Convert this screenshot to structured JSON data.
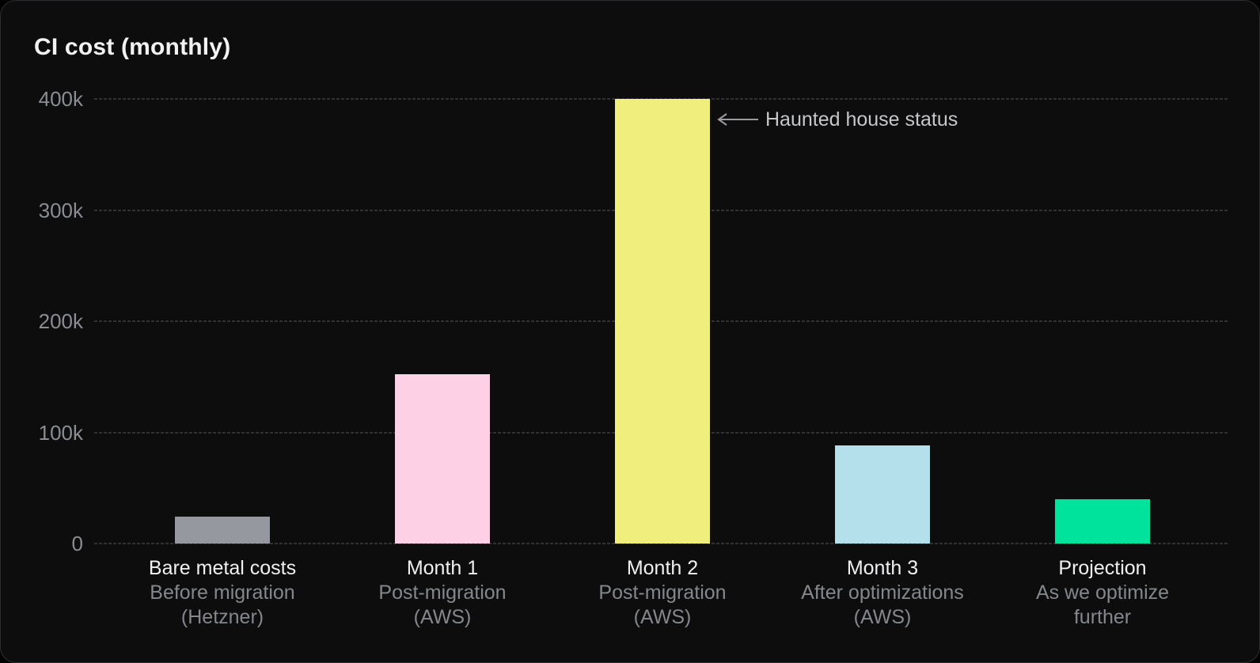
{
  "title": "CI cost (monthly)",
  "colors": {
    "background": "#0d0d0e",
    "panel_border": "#2e2e31",
    "title_text": "#f2f2f3",
    "tick_label": "#8b8d93",
    "gridline": "#313134",
    "category_label": "#f0f0f1",
    "category_sublabel": "#85878c",
    "annotation_text": "#c6c7ca",
    "annotation_arrow": "#9b9ca0",
    "bar_gray": "#95999f",
    "bar_pink": "#fdd0e5",
    "bar_yellow": "#f0ee7d",
    "bar_blue": "#b4e0eb",
    "bar_green": "#00e39c"
  },
  "chart_data": {
    "type": "bar",
    "title": "CI cost (monthly)",
    "xlabel": "",
    "ylabel": "",
    "ylim": [
      0,
      400000
    ],
    "grid": true,
    "grid_style": "dashed",
    "legend": false,
    "yticks": [
      {
        "value": 0,
        "label": "0"
      },
      {
        "value": 100000,
        "label": "100k"
      },
      {
        "value": 200000,
        "label": "200k"
      },
      {
        "value": 300000,
        "label": "300k"
      },
      {
        "value": 400000,
        "label": "400k"
      }
    ],
    "categories": [
      "Bare metal costs",
      "Month 1",
      "Month 2",
      "Month 3",
      "Projection"
    ],
    "bars": [
      {
        "label": "Bare metal costs",
        "sublines": [
          "Before migration",
          "(Hetzner)"
        ],
        "value": 24000,
        "color": "#95999f"
      },
      {
        "label": "Month 1",
        "sublines": [
          "Post-migration",
          "(AWS)"
        ],
        "value": 152000,
        "color": "#fdd0e5"
      },
      {
        "label": "Month 2",
        "sublines": [
          "Post-migration",
          "(AWS)"
        ],
        "value": 400000,
        "color": "#f0ee7d",
        "annotation": "Haunted house status"
      },
      {
        "label": "Month 3",
        "sublines": [
          "After optimizations",
          "(AWS)"
        ],
        "value": 88000,
        "color": "#b4e0eb"
      },
      {
        "label": "Projection",
        "sublines": [
          "As we optimize",
          "further"
        ],
        "value": 40000,
        "color": "#00e39c"
      }
    ],
    "annotation": {
      "text": "Haunted house status",
      "arrow_direction": "left",
      "points_to": "Month 2"
    }
  }
}
